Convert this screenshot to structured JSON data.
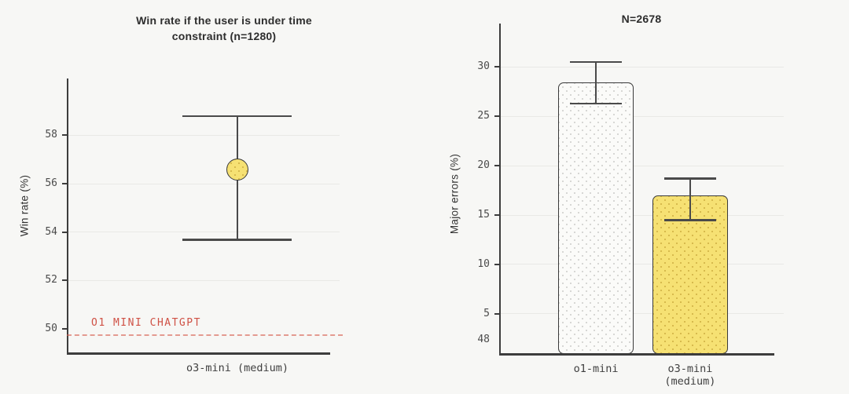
{
  "figure": {
    "background": "#f7f7f5"
  },
  "colors": {
    "background": "#f7f7f5",
    "axis": "#3d3d3d",
    "gridline": "#e9e9e6",
    "error_bar": "#4a4a4a",
    "tick_text": "#4b4b4b",
    "title_text": "#2d2d2d",
    "marker_yellow_fill": "#f6e173",
    "bar_white_fill": "#fbfbf9",
    "bar_border": "#3a3a3a",
    "baseline_red": "#cf5145"
  },
  "chart_data": [
    {
      "type": "scatter",
      "title": "Win rate if the user is under time constraint (n=1280)",
      "title_lines": [
        "Win rate if the user is under time",
        "constraint (n=1280)"
      ],
      "ylabel": "Win rate (%)",
      "ylim": [
        49.0,
        60.35
      ],
      "grid": true,
      "legend_position": "none",
      "yticks": [
        {
          "label": "58",
          "value": 58,
          "grid": true,
          "notch": true
        },
        {
          "label": "56",
          "value": 56,
          "grid": true,
          "notch": true
        },
        {
          "label": "54",
          "value": 54,
          "grid": true,
          "notch": true
        },
        {
          "label": "52",
          "value": 52,
          "grid": true,
          "notch": true
        },
        {
          "label": "50",
          "value": 50,
          "grid": false,
          "notch": true
        }
      ],
      "categories": [
        "o3-mini (medium)"
      ],
      "series": [
        {
          "name": "o3-mini (medium)",
          "value": 56.6,
          "ci_low": 53.7,
          "ci_high": 58.8,
          "x_frac": 0.625,
          "marker": "yellow-dotted-circle"
        }
      ],
      "baseline": {
        "label": "O1 MINI CHATGPT",
        "value": 49.75,
        "style": "dashed-red"
      }
    },
    {
      "type": "bar",
      "title": "N=2678",
      "ylabel": "Major errors (%)",
      "ylim": [
        0.95,
        34.37
      ],
      "grid": true,
      "legend_position": "none",
      "yticks": [
        {
          "label": "30",
          "value": 30,
          "grid": true,
          "notch": true
        },
        {
          "label": "25",
          "value": 25,
          "grid": true,
          "notch": true
        },
        {
          "label": "20",
          "value": 20,
          "grid": true,
          "notch": true
        },
        {
          "label": "15",
          "value": 15,
          "grid": true,
          "notch": true
        },
        {
          "label": "10",
          "value": 10,
          "grid": true,
          "notch": true
        },
        {
          "label": "5",
          "value": 5,
          "grid": true,
          "notch": true
        },
        {
          "label": "48",
          "value": 2.36,
          "grid": false,
          "notch": false
        }
      ],
      "categories": [
        "o1-mini",
        "o3-mini (medium)"
      ],
      "series": [
        {
          "name": "o1-mini",
          "value": 28.4,
          "ci_low": 26.3,
          "ci_high": 30.5,
          "x_frac": 0.34,
          "fill": "white-dotted",
          "label_lines": [
            "o1-mini"
          ]
        },
        {
          "name": "o3-mini (medium)",
          "value": 17.0,
          "ci_low": 14.5,
          "ci_high": 18.7,
          "x_frac": 0.671,
          "fill": "yellow-dotted",
          "label_lines": [
            "o3-mini",
            "(medium)"
          ]
        }
      ]
    }
  ]
}
